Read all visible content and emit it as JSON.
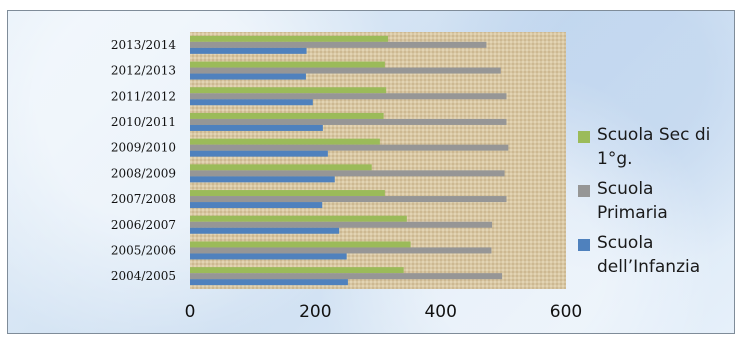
{
  "chart_data": {
    "type": "bar",
    "orientation": "horizontal",
    "categories": [
      "2004/2005",
      "2005/2006",
      "2006/2007",
      "2007/2008",
      "2008/2009",
      "2009/2010",
      "2010/2011",
      "2011/2012",
      "2012/2013",
      "2013/2014"
    ],
    "series": [
      {
        "name": "Scuola dell’Infanzia",
        "color": "#4f81bd",
        "values": [
          252,
          250,
          238,
          211,
          231,
          220,
          212,
          196,
          185,
          186
        ]
      },
      {
        "name": "Scuola Primaria",
        "color": "#969696",
        "values": [
          498,
          481,
          482,
          505,
          502,
          508,
          505,
          505,
          496,
          473
        ]
      },
      {
        "name": "Scuola Sec di 1°g.",
        "color": "#9bbb59",
        "values": [
          341,
          352,
          346,
          311,
          290,
          303,
          309,
          313,
          311,
          316
        ]
      }
    ],
    "xlim": [
      0,
      600
    ],
    "xticks": [
      0,
      200,
      400,
      600
    ],
    "xtick_labels": [
      "0",
      "200",
      "400",
      "600"
    ],
    "title": "",
    "xlabel": "",
    "ylabel": "",
    "legend_position": "right",
    "plot_background": "burlap texture"
  },
  "legend": {
    "items": [
      {
        "label": "Scuola Sec di\n1°g.",
        "color": "#9bbb59"
      },
      {
        "label": "Scuola\nPrimaria",
        "color": "#969696"
      },
      {
        "label": "Scuola\ndell’Infanzia",
        "color": "#4f81bd"
      }
    ]
  }
}
